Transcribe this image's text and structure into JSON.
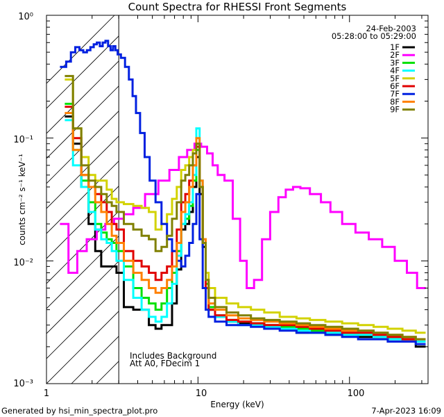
{
  "chart_data": {
    "type": "line",
    "title": "Count Spectra for RHESSI Front Segments",
    "xlabel": "Energy (keV)",
    "ylabel": "counts cm⁻² s⁻¹ keV⁻¹",
    "xscale": "log",
    "yscale": "log",
    "xlim": [
      1,
      330
    ],
    "ylim": [
      0.001,
      1
    ],
    "x_ticks": [
      "1",
      "10",
      "100"
    ],
    "y_ticks": [
      "10⁻³",
      "10⁻²",
      "10⁻¹",
      "10⁰"
    ],
    "date": "24-Feb-2003",
    "time_range": "05:28:00 to 05:29:00",
    "annotation_line1": "Includes Background",
    "annotation_line2": "Att A0, FDecim 1",
    "attenuator_cutoff_kev": 3,
    "footer_left": "Generated by hsi_min_spectra_plot.pro",
    "footer_right": "7-Apr-2023 16:09",
    "legend_position": "top-right",
    "series": [
      {
        "name": "1F",
        "color": "#000000",
        "x": [
          1.4,
          1.6,
          1.8,
          2.0,
          2.2,
          2.4,
          2.6,
          2.8,
          3.0,
          3.5,
          4.0,
          4.5,
          5.0,
          5.5,
          6.0,
          6.5,
          7.0,
          7.5,
          8.0,
          8.5,
          9.0,
          9.5,
          10.0,
          10.5,
          11.0,
          11.5,
          12.0,
          14,
          17,
          20,
          25,
          30,
          40,
          50,
          60,
          80,
          100,
          130,
          160,
          200,
          250,
          300
        ],
        "values": [
          0.15,
          0.09,
          0.04,
          0.02,
          0.012,
          0.009,
          0.009,
          0.009,
          0.008,
          0.0042,
          0.004,
          0.004,
          0.003,
          0.0028,
          0.003,
          0.003,
          0.0045,
          0.0085,
          0.018,
          0.02,
          0.025,
          0.04,
          0.07,
          0.035,
          0.013,
          0.006,
          0.004,
          0.0035,
          0.0032,
          0.0031,
          0.0031,
          0.0028,
          0.0028,
          0.0026,
          0.0026,
          0.0025,
          0.0025,
          0.0024,
          0.0024,
          0.0023,
          0.0023,
          0.002
        ]
      },
      {
        "name": "2F",
        "color": "#ff00ff",
        "x": [
          1.3,
          1.5,
          1.7,
          2.0,
          2.3,
          2.6,
          3.0,
          3.5,
          4.0,
          5.0,
          6.0,
          7.0,
          8.0,
          9.0,
          10.0,
          11.0,
          12.0,
          13.0,
          14.0,
          16.0,
          18.0,
          20.0,
          22.0,
          25.0,
          28.0,
          32.0,
          36.0,
          40.0,
          45.0,
          50.0,
          60.0,
          70.0,
          80.0,
          100.0,
          120.0,
          150.0,
          180.0,
          220.0,
          260.0,
          300.0
        ],
        "values": [
          0.02,
          0.008,
          0.012,
          0.015,
          0.018,
          0.02,
          0.022,
          0.024,
          0.027,
          0.035,
          0.045,
          0.055,
          0.07,
          0.08,
          0.09,
          0.085,
          0.075,
          0.06,
          0.05,
          0.045,
          0.022,
          0.01,
          0.006,
          0.007,
          0.015,
          0.025,
          0.033,
          0.038,
          0.04,
          0.039,
          0.035,
          0.03,
          0.025,
          0.02,
          0.017,
          0.015,
          0.013,
          0.01,
          0.008,
          0.006
        ]
      },
      {
        "name": "3F",
        "color": "#00e000",
        "x": [
          1.4,
          1.6,
          1.8,
          2.0,
          2.2,
          2.4,
          2.6,
          2.8,
          3.0,
          3.5,
          4.0,
          4.5,
          5.0,
          5.5,
          6.0,
          6.5,
          7.0,
          7.5,
          8.0,
          8.5,
          9.0,
          9.5,
          10.0,
          10.5,
          11.0,
          11.5,
          12.0,
          14,
          17,
          20,
          25,
          30,
          40,
          50,
          60,
          80,
          100,
          130,
          160,
          200,
          250,
          300
        ],
        "values": [
          0.19,
          0.08,
          0.045,
          0.03,
          0.02,
          0.017,
          0.015,
          0.014,
          0.012,
          0.009,
          0.006,
          0.005,
          0.0045,
          0.004,
          0.0045,
          0.006,
          0.008,
          0.012,
          0.02,
          0.022,
          0.028,
          0.045,
          0.08,
          0.04,
          0.014,
          0.0065,
          0.0042,
          0.0036,
          0.0033,
          0.0032,
          0.0031,
          0.003,
          0.0029,
          0.0028,
          0.0027,
          0.0026,
          0.0026,
          0.0025,
          0.0024,
          0.0024,
          0.0023,
          0.0022
        ]
      },
      {
        "name": "4F",
        "color": "#00ffff",
        "x": [
          1.4,
          1.6,
          1.8,
          2.0,
          2.2,
          2.4,
          2.6,
          2.8,
          3.0,
          3.5,
          4.0,
          4.5,
          5.0,
          5.5,
          6.0,
          6.5,
          7.0,
          7.5,
          8.0,
          8.5,
          9.0,
          9.5,
          10.0,
          10.5,
          11.0,
          11.5,
          12.0,
          14,
          17,
          20,
          25,
          30,
          40,
          50,
          60,
          80,
          100,
          130,
          160,
          200,
          250,
          300
        ],
        "values": [
          0.14,
          0.06,
          0.04,
          0.025,
          0.018,
          0.015,
          0.014,
          0.012,
          0.01,
          0.007,
          0.005,
          0.004,
          0.0035,
          0.0032,
          0.0035,
          0.0045,
          0.0065,
          0.011,
          0.02,
          0.024,
          0.03,
          0.05,
          0.12,
          0.045,
          0.014,
          0.006,
          0.004,
          0.0035,
          0.0032,
          0.003,
          0.003,
          0.0029,
          0.0028,
          0.0027,
          0.0026,
          0.0026,
          0.0025,
          0.0025,
          0.0024,
          0.0023,
          0.0022,
          0.0022
        ]
      },
      {
        "name": "5F",
        "color": "#d2d200",
        "x": [
          1.4,
          1.6,
          1.8,
          2.0,
          2.2,
          2.4,
          2.6,
          2.8,
          3.0,
          3.5,
          4.0,
          4.5,
          5.0,
          5.5,
          6.0,
          6.5,
          7.0,
          7.5,
          8.0,
          8.5,
          9.0,
          9.5,
          10.0,
          10.5,
          11.0,
          11.5,
          12.0,
          14,
          17,
          20,
          25,
          30,
          40,
          50,
          60,
          80,
          100,
          130,
          160,
          200,
          250,
          300
        ],
        "values": [
          0.3,
          0.12,
          0.07,
          0.05,
          0.045,
          0.045,
          0.038,
          0.032,
          0.03,
          0.029,
          0.028,
          0.027,
          0.025,
          0.018,
          0.02,
          0.024,
          0.032,
          0.04,
          0.055,
          0.06,
          0.07,
          0.08,
          0.09,
          0.04,
          0.015,
          0.008,
          0.006,
          0.005,
          0.0045,
          0.0042,
          0.004,
          0.0038,
          0.0035,
          0.0034,
          0.0033,
          0.0032,
          0.0031,
          0.003,
          0.0029,
          0.0028,
          0.0027,
          0.0026
        ]
      },
      {
        "name": "6F",
        "color": "#e00000",
        "x": [
          1.4,
          1.6,
          1.8,
          2.0,
          2.2,
          2.4,
          2.6,
          2.8,
          3.0,
          3.5,
          4.0,
          4.5,
          5.0,
          5.5,
          6.0,
          6.5,
          7.0,
          7.5,
          8.0,
          8.5,
          9.0,
          9.5,
          10.0,
          10.5,
          11.0,
          11.5,
          12.0,
          14,
          17,
          20,
          25,
          30,
          40,
          50,
          60,
          80,
          100,
          130,
          160,
          200,
          250,
          300
        ],
        "values": [
          0.18,
          0.1,
          0.05,
          0.04,
          0.035,
          0.03,
          0.025,
          0.02,
          0.018,
          0.012,
          0.01,
          0.009,
          0.008,
          0.007,
          0.008,
          0.009,
          0.012,
          0.018,
          0.03,
          0.035,
          0.045,
          0.06,
          0.085,
          0.04,
          0.014,
          0.006,
          0.004,
          0.0036,
          0.0033,
          0.0032,
          0.0031,
          0.003,
          0.003,
          0.0029,
          0.0028,
          0.0027,
          0.0026,
          0.0026,
          0.0025,
          0.0024,
          0.0023,
          0.0023
        ]
      },
      {
        "name": "7F",
        "color": "#0020e0",
        "x": [
          1.3,
          1.4,
          1.5,
          1.6,
          1.7,
          1.8,
          1.9,
          2.0,
          2.1,
          2.2,
          2.3,
          2.4,
          2.5,
          2.6,
          2.7,
          2.8,
          2.9,
          3.0,
          3.2,
          3.4,
          3.6,
          3.8,
          4.0,
          4.3,
          4.6,
          5.0,
          5.5,
          6.0,
          6.5,
          7.0,
          7.5,
          8.0,
          8.5,
          9.0,
          9.5,
          10.0,
          10.5,
          11.0,
          11.5,
          12.0,
          14,
          17,
          20,
          25,
          30,
          40,
          50,
          60,
          80,
          100,
          130,
          160,
          200,
          250,
          300
        ],
        "values": [
          0.38,
          0.42,
          0.5,
          0.55,
          0.52,
          0.5,
          0.52,
          0.55,
          0.58,
          0.6,
          0.56,
          0.6,
          0.62,
          0.56,
          0.52,
          0.56,
          0.52,
          0.48,
          0.45,
          0.38,
          0.3,
          0.22,
          0.16,
          0.11,
          0.07,
          0.045,
          0.03,
          0.02,
          0.015,
          0.012,
          0.01,
          0.009,
          0.011,
          0.014,
          0.02,
          0.035,
          0.015,
          0.006,
          0.004,
          0.0035,
          0.0032,
          0.003,
          0.003,
          0.0029,
          0.0028,
          0.0027,
          0.0026,
          0.0026,
          0.0025,
          0.0024,
          0.0023,
          0.0023,
          0.0022,
          0.0022,
          0.0021
        ]
      },
      {
        "name": "8F",
        "color": "#ff8000",
        "x": [
          1.4,
          1.6,
          1.8,
          2.0,
          2.2,
          2.4,
          2.6,
          2.8,
          3.0,
          3.5,
          4.0,
          4.5,
          5.0,
          5.5,
          6.0,
          6.5,
          7.0,
          7.5,
          8.0,
          8.5,
          9.0,
          9.5,
          10.0,
          10.5,
          11.0,
          11.5,
          12.0,
          14,
          17,
          20,
          25,
          30,
          40,
          50,
          60,
          80,
          100,
          130,
          160,
          200,
          250,
          300
        ],
        "values": [
          0.16,
          0.08,
          0.05,
          0.04,
          0.03,
          0.025,
          0.02,
          0.016,
          0.014,
          0.01,
          0.008,
          0.007,
          0.006,
          0.0055,
          0.006,
          0.007,
          0.009,
          0.014,
          0.025,
          0.03,
          0.04,
          0.06,
          0.1,
          0.045,
          0.015,
          0.007,
          0.0045,
          0.004,
          0.0036,
          0.0034,
          0.0033,
          0.0032,
          0.0031,
          0.003,
          0.0029,
          0.0028,
          0.0027,
          0.0027,
          0.0026,
          0.0025,
          0.0024,
          0.0023
        ]
      },
      {
        "name": "9F",
        "color": "#808000",
        "x": [
          1.4,
          1.6,
          1.8,
          2.0,
          2.2,
          2.4,
          2.6,
          2.8,
          3.0,
          3.5,
          4.0,
          4.5,
          5.0,
          5.5,
          6.0,
          6.5,
          7.0,
          7.5,
          8.0,
          8.5,
          9.0,
          9.5,
          10.0,
          10.5,
          11.0,
          11.5,
          12.0,
          14,
          17,
          20,
          25,
          30,
          40,
          50,
          60,
          80,
          100,
          130,
          160,
          200,
          250,
          300
        ],
        "values": [
          0.32,
          0.12,
          0.06,
          0.045,
          0.04,
          0.035,
          0.03,
          0.028,
          0.025,
          0.02,
          0.018,
          0.016,
          0.015,
          0.012,
          0.013,
          0.016,
          0.022,
          0.03,
          0.045,
          0.05,
          0.06,
          0.075,
          0.09,
          0.04,
          0.014,
          0.007,
          0.005,
          0.0042,
          0.0038,
          0.0036,
          0.0034,
          0.0033,
          0.0032,
          0.0031,
          0.003,
          0.0029,
          0.0028,
          0.0027,
          0.0026,
          0.0025,
          0.0024,
          0.0023
        ]
      }
    ]
  }
}
